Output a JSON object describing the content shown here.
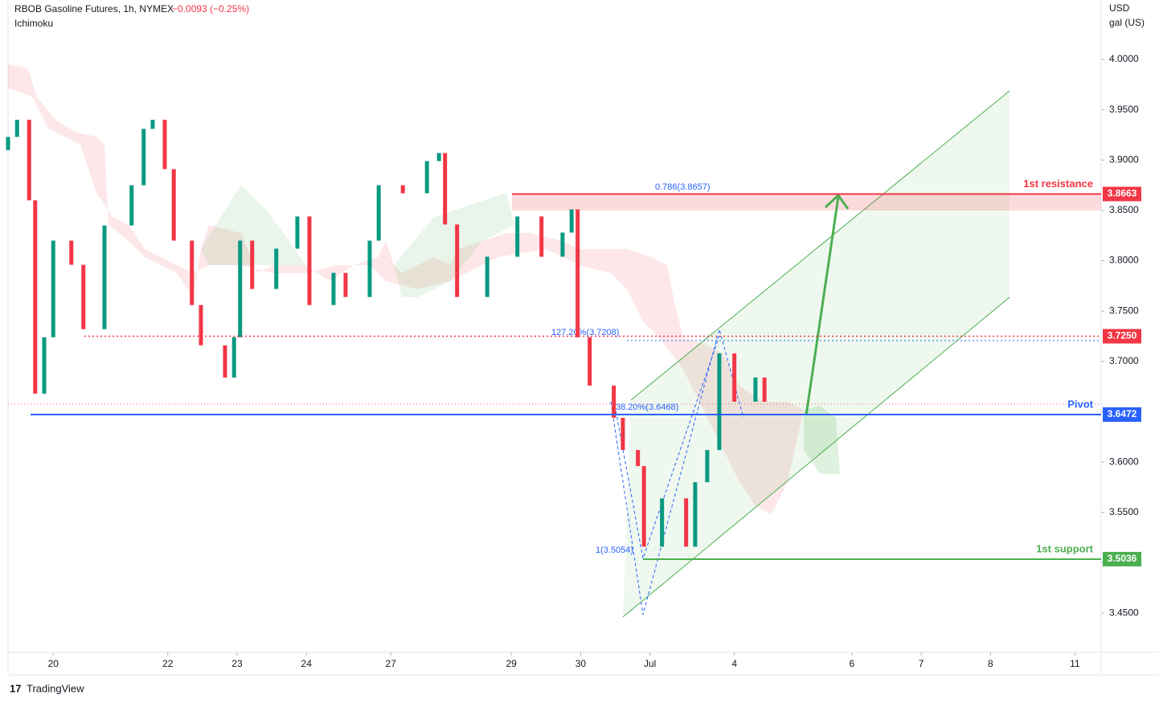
{
  "chart_data": {
    "type": "candlestick",
    "title": "RBOB Gasoline Futures, 1h, NYMEX",
    "change": "−0.0093 (−0.25%)",
    "indicator": "Ichimoku",
    "unit_top": "USD",
    "unit_bottom": "gal (US)",
    "brand": "TradingView",
    "up_color": "#089981",
    "down_color": "#f23645",
    "xlim": [
      0,
      362.7
    ],
    "xticks": [
      {
        "value": 15,
        "label": "20"
      },
      {
        "value": 53,
        "label": "22"
      },
      {
        "value": 76,
        "label": "23"
      },
      {
        "value": 99,
        "label": "24"
      },
      {
        "value": 127,
        "label": "27"
      },
      {
        "value": 167,
        "label": "29"
      },
      {
        "value": 190,
        "label": "30"
      },
      {
        "value": 213,
        "label": "Jul"
      },
      {
        "value": 241,
        "label": "4"
      },
      {
        "value": 280,
        "label": "6"
      },
      {
        "value": 303,
        "label": "7"
      },
      {
        "value": 326,
        "label": "8"
      },
      {
        "value": 354,
        "label": "11"
      }
    ],
    "ylim": [
      3.411,
      4.059
    ],
    "yticks": [
      {
        "value": 3.45,
        "label": "3.4500"
      },
      {
        "value": 3.5,
        "label": "3.5000"
      },
      {
        "value": 3.55,
        "label": "3.5500"
      },
      {
        "value": 3.6,
        "label": "3.6000"
      },
      {
        "value": 3.65,
        "label": "3.6500"
      },
      {
        "value": 3.7,
        "label": "3.7000"
      },
      {
        "value": 3.75,
        "label": "3.7500"
      },
      {
        "value": 3.8,
        "label": "3.8000"
      },
      {
        "value": 3.85,
        "label": "3.8500"
      },
      {
        "value": 3.9,
        "label": "3.9000"
      },
      {
        "value": 3.95,
        "label": "3.9500"
      },
      {
        "value": 4.0,
        "label": "4.0000"
      }
    ],
    "x": [
      0,
      3,
      7,
      9,
      12,
      15,
      21,
      25,
      32,
      41,
      45,
      48,
      52,
      55,
      61,
      64,
      72,
      75,
      77,
      81,
      89,
      96,
      100,
      108,
      112,
      120,
      123,
      131,
      139,
      143,
      145,
      149,
      159,
      169,
      177,
      184,
      187,
      189,
      193,
      201,
      204,
      209,
      211,
      217,
      225,
      228,
      232,
      236,
      241,
      248,
      251
    ],
    "open": [
      3.91,
      3.923,
      3.94,
      3.86,
      3.668,
      3.724,
      3.82,
      3.796,
      3.732,
      3.835,
      3.875,
      3.931,
      3.94,
      3.891,
      3.82,
      3.756,
      3.716,
      3.684,
      3.724,
      3.82,
      3.772,
      3.812,
      3.844,
      3.756,
      3.788,
      3.764,
      3.82,
      3.875,
      3.867,
      3.899,
      3.907,
      3.836,
      3.764,
      3.804,
      3.844,
      3.804,
      3.828,
      3.851,
      3.724,
      3.676,
      3.644,
      3.612,
      3.596,
      3.516,
      3.564,
      3.516,
      3.58,
      3.612,
      3.708,
      3.66,
      3.684
    ],
    "close": [
      3.923,
      3.94,
      3.86,
      3.668,
      3.724,
      3.82,
      3.796,
      3.732,
      3.835,
      3.875,
      3.931,
      3.94,
      3.891,
      3.82,
      3.756,
      3.716,
      3.684,
      3.724,
      3.82,
      3.772,
      3.812,
      3.844,
      3.756,
      3.788,
      3.764,
      3.82,
      3.875,
      3.867,
      3.899,
      3.907,
      3.836,
      3.764,
      3.804,
      3.844,
      3.804,
      3.828,
      3.851,
      3.724,
      3.676,
      3.644,
      3.612,
      3.596,
      3.516,
      3.564,
      3.516,
      3.58,
      3.612,
      3.708,
      3.66,
      3.684,
      3.66
    ],
    "levels": [
      {
        "name": "1st resistance",
        "value": 3.8663,
        "color": "#f23645"
      },
      {
        "value": 3.725,
        "value_label": "3.7250",
        "color": "#f23645"
      },
      {
        "name": "Pivot",
        "value": 3.6472,
        "color": "#2962ff"
      },
      {
        "name": "1st support",
        "value": 3.5036,
        "color": "#4caf50"
      }
    ],
    "fib_labels": [
      "0.786(3.8657)",
      "127.20%(3.7208)",
      "38.20%(3.6468)",
      "1(3.5054)"
    ]
  }
}
